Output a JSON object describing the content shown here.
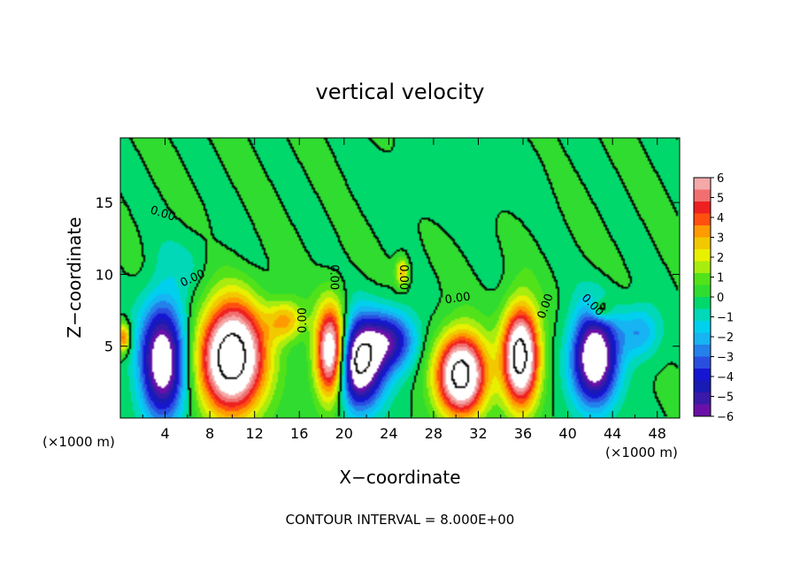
{
  "chart_data": {
    "type": "heatmap",
    "title": "vertical velocity",
    "xlabel": "X−coordinate",
    "ylabel": "Z−coordinate",
    "x_unit_left": "(×1000 m)",
    "x_unit_right": "(×1000 m)",
    "footer": "CONTOUR INTERVAL = 8.000E+00",
    "xlim": [
      0,
      50
    ],
    "ylim": [
      0,
      19.5
    ],
    "x_ticks": [
      4,
      8,
      12,
      16,
      20,
      24,
      28,
      32,
      36,
      40,
      44,
      48
    ],
    "y_ticks": [
      5,
      10,
      15
    ],
    "colorbar": {
      "vmin": -6,
      "vmax": 6,
      "labels": [
        "6",
        "5",
        "4",
        "3",
        "2",
        "1",
        "0",
        "−1",
        "−2",
        "−3",
        "−4",
        "−5",
        "−6"
      ],
      "colors": [
        "#f4a8a8",
        "#f07070",
        "#ee2020",
        "#ff5010",
        "#ff9a00",
        "#f2c800",
        "#e8f000",
        "#a8ec10",
        "#52e21a",
        "#30dc30",
        "#00d86c",
        "#00d8b8",
        "#00d0ee",
        "#16b4f2",
        "#2480ea",
        "#2a4ee0",
        "#1616d2",
        "#1a1ab4",
        "#3a1aa8",
        "#6a10a8"
      ]
    },
    "contour_labels": [
      {
        "text": "0.00",
        "x": 3.7,
        "y": 14.0,
        "rot": 18
      },
      {
        "text": "0.00",
        "x": 6.6,
        "y": 9.5,
        "rot": -25
      },
      {
        "text": "0.00",
        "x": 16.6,
        "y": 6.8,
        "rot": -90
      },
      {
        "text": "0.00",
        "x": 18.8,
        "y": 9.8,
        "rot": 90
      },
      {
        "text": "0.00",
        "x": 25.0,
        "y": 9.8,
        "rot": 90
      },
      {
        "text": "0.00",
        "x": 30.2,
        "y": 8.1,
        "rot": -8
      },
      {
        "text": "0.00",
        "x": 38.3,
        "y": 7.7,
        "rot": -70
      },
      {
        "text": "0.00",
        "x": 42.0,
        "y": 7.7,
        "rot": 45
      }
    ],
    "features": [
      {
        "x": 3.8,
        "z": 4.0,
        "sx": 2.0,
        "sz": 4.0,
        "w": -7.5
      },
      {
        "x": 10.0,
        "z": 4.2,
        "sx": 2.9,
        "sz": 3.8,
        "w": 9.5
      },
      {
        "x": 14.8,
        "z": 6.8,
        "sx": 1.6,
        "sz": 1.4,
        "w": 3.0
      },
      {
        "x": 18.9,
        "z": 4.5,
        "sx": 1.4,
        "sz": 3.2,
        "w": 9.0
      },
      {
        "x": 21.3,
        "z": 3.8,
        "sx": 2.2,
        "sz": 3.0,
        "w": -8.5
      },
      {
        "x": 24.2,
        "z": 5.4,
        "sx": 2.2,
        "sz": 2.0,
        "w": -4.5
      },
      {
        "x": 30.5,
        "z": 3.0,
        "sx": 2.2,
        "sz": 2.8,
        "w": 9.0
      },
      {
        "x": 35.8,
        "z": 4.3,
        "sx": 1.6,
        "sz": 3.4,
        "w": 9.0
      },
      {
        "x": 42.4,
        "z": 4.2,
        "sx": 2.0,
        "sz": 3.2,
        "w": -8.0
      },
      {
        "x": 46.4,
        "z": 6.0,
        "sx": 1.8,
        "sz": 1.8,
        "w": -2.4
      },
      {
        "x": 0.3,
        "z": 5.6,
        "sx": 0.6,
        "sz": 1.0,
        "w": 4.0
      },
      {
        "x": 25.2,
        "z": 10.2,
        "sx": 0.6,
        "sz": 1.0,
        "w": 3.0
      },
      {
        "x": 43.0,
        "z": 7.5,
        "sx": 1.0,
        "sz": 0.8,
        "w": 2.5
      },
      {
        "x": 6.3,
        "z": 11.0,
        "sx": 3.0,
        "sz": 2.0,
        "w": -0.6
      },
      {
        "x": 30.0,
        "z": 16.0,
        "sx": 6.0,
        "sz": 3.0,
        "w": -0.4
      }
    ]
  }
}
